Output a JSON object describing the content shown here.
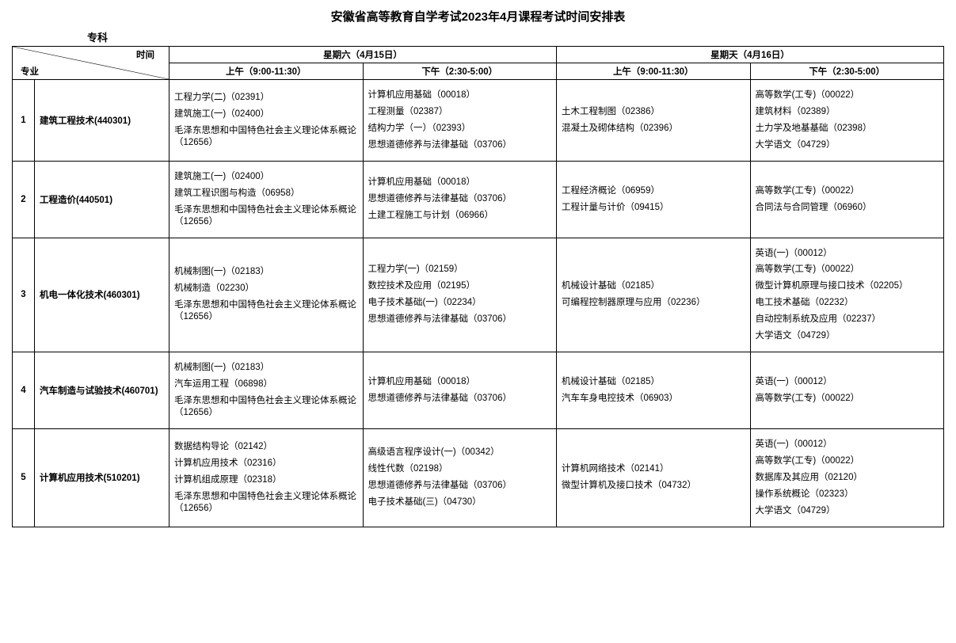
{
  "title": "安徽省高等教育自学考试2023年4月课程考试时间安排表",
  "subtitle": "专科",
  "header": {
    "diag_left": "专业",
    "diag_right": "时间",
    "day1": "星期六（4月15日）",
    "day2": "星期天（4月16日）",
    "slot_am": "上午（9:00-11:30）",
    "slot_pm": "下午（2:30-5:00）"
  },
  "rows": [
    {
      "idx": "1",
      "major": "建筑工程技术(440301)",
      "d1am": [
        "工程力学(二)（02391）",
        "建筑施工(一)（02400）",
        "毛泽东思想和中国特色社会主义理论体系概论（12656）"
      ],
      "d1pm": [
        "计算机应用基础（00018）",
        "工程测量（02387）",
        "结构力学（一）（02393）",
        "思想道德修养与法律基础（03706）"
      ],
      "d2am": [
        "土木工程制图（02386）",
        "混凝土及砌体结构（02396）"
      ],
      "d2pm": [
        "高等数学(工专)（00022）",
        "建筑材料（02389）",
        "土力学及地基基础（02398）",
        "大学语文（04729）"
      ]
    },
    {
      "idx": "2",
      "major": "工程造价(440501)",
      "d1am": [
        "建筑施工(一)（02400）",
        "建筑工程识图与构造（06958）",
        "毛泽东思想和中国特色社会主义理论体系概论（12656）"
      ],
      "d1pm": [
        "计算机应用基础（00018）",
        "思想道德修养与法律基础（03706）",
        "土建工程施工与计划（06966）"
      ],
      "d2am": [
        "工程经济概论（06959）",
        "工程计量与计价（09415）"
      ],
      "d2pm": [
        "高等数学(工专)（00022）",
        "合同法与合同管理（06960）"
      ]
    },
    {
      "idx": "3",
      "major": "机电一体化技术(460301)",
      "d1am": [
        "机械制图(一)（02183）",
        "机械制造（02230）",
        "毛泽东思想和中国特色社会主义理论体系概论（12656）"
      ],
      "d1pm": [
        "工程力学(一)（02159）",
        "数控技术及应用（02195）",
        "电子技术基础(一)（02234）",
        "思想道德修养与法律基础（03706）"
      ],
      "d2am": [
        "机械设计基础（02185）",
        "可编程控制器原理与应用（02236）"
      ],
      "d2pm": [
        "英语(一)（00012）",
        "高等数学(工专)（00022）",
        "微型计算机原理与接口技术（02205）",
        "电工技术基础（02232）",
        "自动控制系统及应用（02237）",
        "大学语文（04729）"
      ]
    },
    {
      "idx": "4",
      "major": "汽车制造与试验技术(460701)",
      "d1am": [
        "机械制图(一)（02183）",
        "汽车运用工程（06898）",
        "毛泽东思想和中国特色社会主义理论体系概论（12656）"
      ],
      "d1pm": [
        "计算机应用基础（00018）",
        "思想道德修养与法律基础（03706）"
      ],
      "d2am": [
        "机械设计基础（02185）",
        "汽车车身电控技术（06903）"
      ],
      "d2pm": [
        "英语(一)（00012）",
        "高等数学(工专)（00022）"
      ]
    },
    {
      "idx": "5",
      "major": "计算机应用技术(510201)",
      "d1am": [
        "数据结构导论（02142）",
        "计算机应用技术（02316）",
        "计算机组成原理（02318）",
        "毛泽东思想和中国特色社会主义理论体系概论（12656）"
      ],
      "d1pm": [
        "高级语言程序设计(一)（00342）",
        "线性代数（02198）",
        "思想道德修养与法律基础（03706）",
        "电子技术基础(三)（04730）"
      ],
      "d2am": [
        "计算机网络技术（02141）",
        "微型计算机及接口技术（04732）"
      ],
      "d2pm": [
        "英语(一)（00012）",
        "高等数学(工专)（00022）",
        "数据库及其应用（02120）",
        "操作系统概论（02323）",
        "大学语文（04729）"
      ]
    }
  ]
}
